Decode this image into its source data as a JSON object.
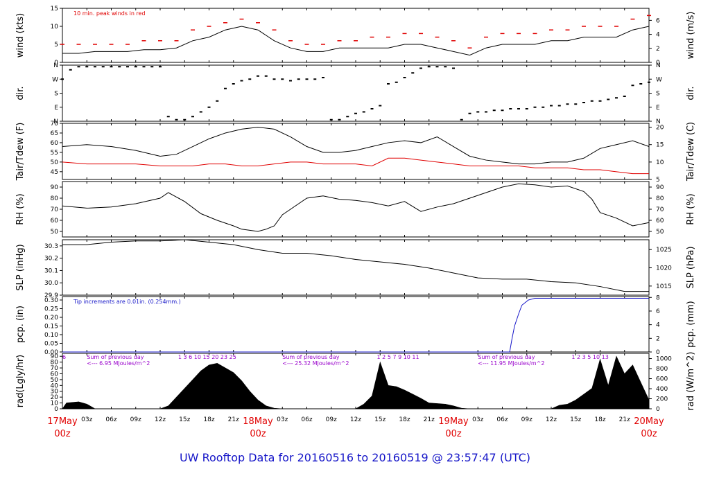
{
  "title": "UW Rooftop Data for 20160516  to  20160519 @ 23:57:47  (UTC)",
  "colors": {
    "title": "#1515c8",
    "red": "#e00000",
    "blue": "#1515c8",
    "purple": "#9900cc",
    "black": "#000000"
  },
  "time_axis": {
    "hours": [
      0,
      72
    ],
    "hour_ticks": [
      "03z",
      "06z",
      "09z",
      "12z",
      "15z",
      "18z",
      "21z",
      "03z",
      "06z",
      "09z",
      "12z",
      "15z",
      "18z",
      "21z",
      "03z",
      "06z",
      "09z",
      "12z",
      "15z",
      "18z",
      "21z"
    ],
    "hour_tick_positions": [
      3,
      6,
      9,
      12,
      15,
      18,
      21,
      27,
      30,
      33,
      36,
      39,
      42,
      45,
      51,
      54,
      57,
      60,
      63,
      66,
      69
    ],
    "days": [
      {
        "hour": 0,
        "top": "17May",
        "bottom": "00z"
      },
      {
        "hour": 24,
        "top": "18May",
        "bottom": "00z"
      },
      {
        "hour": 48,
        "top": "19May",
        "bottom": "00z"
      },
      {
        "hour": 72,
        "top": "20May",
        "bottom": "00z"
      }
    ]
  },
  "chart_data": [
    {
      "id": "wind",
      "type": "line",
      "ylabel": "wind (kts)",
      "ylabel_right": "wind (m/s)",
      "ylim": [
        0,
        15
      ],
      "yticks": [
        "0",
        "5",
        "10",
        "15"
      ],
      "y2lim": [
        0,
        7.72
      ],
      "y2ticks": [
        "0",
        "2",
        "4",
        "6"
      ],
      "annotation": "10 min. peak winds in red",
      "series": [
        {
          "name": "wind",
          "color": "#000000",
          "x": [
            0,
            2,
            4,
            6,
            8,
            10,
            12,
            14,
            16,
            18,
            20,
            22,
            24,
            26,
            28,
            30,
            32,
            34,
            36,
            38,
            40,
            42,
            44,
            46,
            48,
            50,
            52,
            54,
            56,
            58,
            60,
            62,
            64,
            66,
            68,
            70,
            72
          ],
          "y": [
            2.5,
            2.5,
            3,
            3,
            3,
            3.5,
            3.5,
            4,
            6,
            7,
            9,
            10,
            9,
            6,
            4,
            3,
            3,
            4,
            4,
            4,
            4,
            5,
            5,
            4,
            3,
            2,
            4,
            5,
            5,
            5,
            6,
            6,
            7,
            7,
            7,
            9,
            10
          ]
        },
        {
          "name": "10 min. peak winds",
          "color": "#e00000",
          "x": [
            0,
            2,
            4,
            6,
            8,
            10,
            12,
            14,
            16,
            18,
            20,
            22,
            24,
            26,
            28,
            30,
            32,
            34,
            36,
            38,
            40,
            42,
            44,
            46,
            48,
            50,
            52,
            54,
            56,
            58,
            60,
            62,
            64,
            66,
            68,
            70,
            72
          ],
          "y": [
            5,
            5,
            5,
            5,
            5,
            6,
            6,
            6,
            9,
            10,
            11,
            12,
            11,
            9,
            6,
            5,
            5,
            6,
            6,
            7,
            7,
            8,
            8,
            7,
            6,
            4,
            7,
            8,
            8,
            8,
            9,
            9,
            10,
            10,
            10,
            12,
            13
          ]
        }
      ]
    },
    {
      "id": "dir",
      "type": "scatter",
      "ylabel": "dir.",
      "ylabel_right": "dir.",
      "ylim": [
        0,
        360
      ],
      "yticks": [
        "N",
        "E",
        "S",
        "W",
        "N"
      ],
      "series": [
        {
          "name": "dir",
          "color": "#000000",
          "x": [
            0,
            1,
            2,
            3,
            4,
            5,
            6,
            7,
            8,
            9,
            10,
            11,
            12,
            13,
            14,
            15,
            16,
            17,
            18,
            19,
            20,
            21,
            22,
            23,
            24,
            25,
            26,
            27,
            28,
            29,
            30,
            31,
            32,
            33,
            34,
            35,
            36,
            37,
            38,
            39,
            40,
            41,
            42,
            43,
            44,
            45,
            46,
            47,
            48,
            49,
            50,
            51,
            52,
            53,
            54,
            55,
            56,
            57,
            58,
            59,
            60,
            61,
            62,
            63,
            64,
            65,
            66,
            67,
            68,
            69,
            70,
            71,
            72
          ],
          "y": [
            270,
            330,
            350,
            350,
            350,
            350,
            350,
            350,
            350,
            350,
            350,
            350,
            350,
            30,
            10,
            10,
            30,
            60,
            90,
            130,
            210,
            240,
            260,
            270,
            290,
            290,
            270,
            270,
            260,
            270,
            270,
            270,
            280,
            10,
            10,
            30,
            50,
            60,
            80,
            100,
            240,
            250,
            280,
            310,
            340,
            350,
            350,
            350,
            340,
            10,
            50,
            60,
            60,
            70,
            70,
            80,
            80,
            80,
            90,
            90,
            100,
            100,
            110,
            110,
            120,
            130,
            130,
            140,
            150,
            160,
            230,
            240,
            250
          ]
        }
      ]
    },
    {
      "id": "temp",
      "type": "line",
      "ylabel": "Tair/Tdew (F)",
      "ylabel_right": "Tair/Tdew (C)",
      "ylim": [
        41,
        70
      ],
      "yticks": [
        "45",
        "50",
        "55",
        "60",
        "65",
        "70"
      ],
      "y2lim": [
        5,
        21.11
      ],
      "y2ticks": [
        "5",
        "10",
        "15",
        "20"
      ],
      "series": [
        {
          "name": "Tair",
          "color": "#000000",
          "x": [
            0,
            3,
            6,
            9,
            12,
            14,
            16,
            18,
            20,
            22,
            24,
            26,
            28,
            30,
            32,
            34,
            36,
            38,
            40,
            42,
            44,
            46,
            48,
            50,
            52,
            54,
            56,
            58,
            60,
            62,
            64,
            66,
            68,
            70,
            72
          ],
          "y": [
            58,
            59,
            58,
            56,
            53,
            54,
            58,
            62,
            65,
            67,
            68,
            67,
            63,
            58,
            55,
            55,
            56,
            58,
            60,
            61,
            60,
            63,
            58,
            53,
            51,
            50,
            49,
            49,
            50,
            50,
            52,
            57,
            59,
            61,
            58
          ]
        },
        {
          "name": "Tdew",
          "color": "#e00000",
          "x": [
            0,
            3,
            6,
            9,
            12,
            14,
            16,
            18,
            20,
            22,
            24,
            26,
            28,
            30,
            32,
            34,
            36,
            38,
            40,
            42,
            44,
            46,
            48,
            50,
            52,
            54,
            56,
            58,
            60,
            62,
            64,
            66,
            68,
            70,
            72
          ],
          "y": [
            50,
            49,
            49,
            49,
            48,
            48,
            48,
            49,
            49,
            48,
            48,
            49,
            50,
            50,
            49,
            49,
            49,
            48,
            52,
            52,
            51,
            50,
            49,
            48,
            48,
            48,
            48,
            47,
            47,
            47,
            46,
            46,
            45,
            44,
            44
          ]
        }
      ]
    },
    {
      "id": "rh",
      "type": "line",
      "ylabel": "RH (%)",
      "ylabel_right": "RH (%)",
      "ylim": [
        45,
        95
      ],
      "yticks": [
        "50",
        "60",
        "70",
        "80",
        "90"
      ],
      "series": [
        {
          "name": "RH",
          "color": "#000000",
          "x": [
            0,
            3,
            6,
            9,
            12,
            13,
            15,
            17,
            19,
            21,
            22,
            24,
            25,
            26,
            27,
            28,
            30,
            32,
            34,
            36,
            38,
            40,
            42,
            44,
            46,
            48,
            50,
            52,
            54,
            56,
            58,
            60,
            62,
            64,
            65,
            66,
            68,
            70,
            72
          ],
          "y": [
            73,
            71,
            72,
            75,
            80,
            85,
            77,
            66,
            60,
            55,
            52,
            50,
            52,
            55,
            65,
            70,
            80,
            82,
            79,
            78,
            76,
            73,
            77,
            68,
            72,
            75,
            80,
            85,
            90,
            93,
            92,
            90,
            91,
            86,
            79,
            67,
            62,
            55,
            58
          ]
        }
      ]
    },
    {
      "id": "slp",
      "type": "line",
      "ylabel": "SLP (inHg)",
      "ylabel_right": "SLP (hPa)",
      "ylim": [
        29.9,
        30.35
      ],
      "yticks": [
        "29.9",
        "30.0",
        "30.1",
        "30.2",
        "30.3"
      ],
      "y2lim": [
        1012.5,
        1027.7
      ],
      "y2ticks": [
        "1015",
        "1020",
        "1025"
      ],
      "series": [
        {
          "name": "SLP",
          "color": "#000000",
          "x": [
            0,
            3,
            6,
            9,
            12,
            15,
            18,
            21,
            24,
            27,
            30,
            33,
            36,
            39,
            42,
            45,
            48,
            51,
            54,
            57,
            60,
            63,
            66,
            69,
            72
          ],
          "y": [
            30.31,
            30.31,
            30.33,
            30.34,
            30.34,
            30.35,
            30.33,
            30.31,
            30.27,
            30.24,
            30.24,
            30.22,
            30.19,
            30.17,
            30.15,
            30.12,
            30.08,
            30.04,
            30.03,
            30.03,
            30.01,
            30.0,
            29.97,
            29.93,
            29.93
          ]
        }
      ]
    },
    {
      "id": "pcp",
      "type": "line",
      "ylabel": "pcp. (in)",
      "ylabel_right": "pcp. (mm)",
      "ylim": [
        0,
        0.32
      ],
      "yticks": [
        "0.00",
        "0.05",
        "0.10",
        "0.15",
        "0.20",
        "0.25",
        "0.30"
      ],
      "y2lim": [
        0,
        8.128
      ],
      "y2ticks": [
        "0",
        "2",
        "4",
        "6",
        "8"
      ],
      "annotation": "Tip increments are 0.01in. (0.254mm.)",
      "series": [
        {
          "name": "pcp",
          "color": "#1515c8",
          "x": [
            0,
            54.9,
            55.2,
            55.5,
            56.0,
            56.4,
            57.2,
            58.0,
            72
          ],
          "y": [
            0,
            0,
            0.08,
            0.15,
            0.22,
            0.27,
            0.3,
            0.31,
            0.31
          ]
        }
      ]
    },
    {
      "id": "rad",
      "type": "area",
      "ylabel": "rad(Lgly/hr)",
      "ylabel_right": "rad (W/m^2)",
      "ylim": [
        0,
        95
      ],
      "yticks": [
        "0",
        "10",
        "20",
        "30",
        "40",
        "50",
        "60",
        "70",
        "80",
        "90"
      ],
      "y2lim": [
        0,
        1104
      ],
      "y2ticks": [
        "0",
        "200",
        "400",
        "600",
        "800",
        "1000"
      ],
      "series": [
        {
          "name": "rad",
          "color": "#000000",
          "x": [
            0,
            0.5,
            2,
            3,
            4,
            12,
            13,
            14,
            15,
            16,
            17,
            18,
            19,
            20,
            21,
            22,
            23,
            24,
            25,
            26,
            27,
            36,
            37,
            38,
            39,
            40,
            41,
            42,
            43,
            44,
            45,
            46,
            47,
            48,
            49,
            50,
            51,
            60,
            61,
            62,
            63,
            64,
            65,
            66,
            67,
            68,
            69,
            70,
            71,
            72
          ],
          "y": [
            0,
            10,
            12,
            8,
            0,
            0,
            5,
            20,
            35,
            50,
            65,
            75,
            78,
            70,
            62,
            48,
            30,
            15,
            5,
            1,
            0,
            0,
            8,
            22,
            80,
            40,
            38,
            32,
            25,
            18,
            10,
            9,
            8,
            5,
            1,
            0,
            0,
            0,
            6,
            8,
            15,
            25,
            35,
            85,
            40,
            90,
            60,
            75,
            45,
            15
          ]
        }
      ],
      "annotations": [
        {
          "hour": 0,
          "text": "6"
        },
        {
          "hour": 3,
          "text": "Sum of previous day"
        },
        {
          "hour": 3,
          "text": "<--- 6.95 MJoules/m^2"
        },
        {
          "hour": 14.2,
          "text": "1  3  6  10  15  20  23  25"
        },
        {
          "hour": 27,
          "text": "Sum of previous day"
        },
        {
          "hour": 27,
          "text": "<--- 25.32 MJoules/m^2"
        },
        {
          "hour": 38.6,
          "text": "1  2  5  7  9  10  11"
        },
        {
          "hour": 51,
          "text": "Sum of previous day"
        },
        {
          "hour": 51,
          "text": "<--- 11.95 MJoules/m^2"
        },
        {
          "hour": 62.5,
          "text": "1  2  3  5  10  13"
        }
      ]
    }
  ]
}
